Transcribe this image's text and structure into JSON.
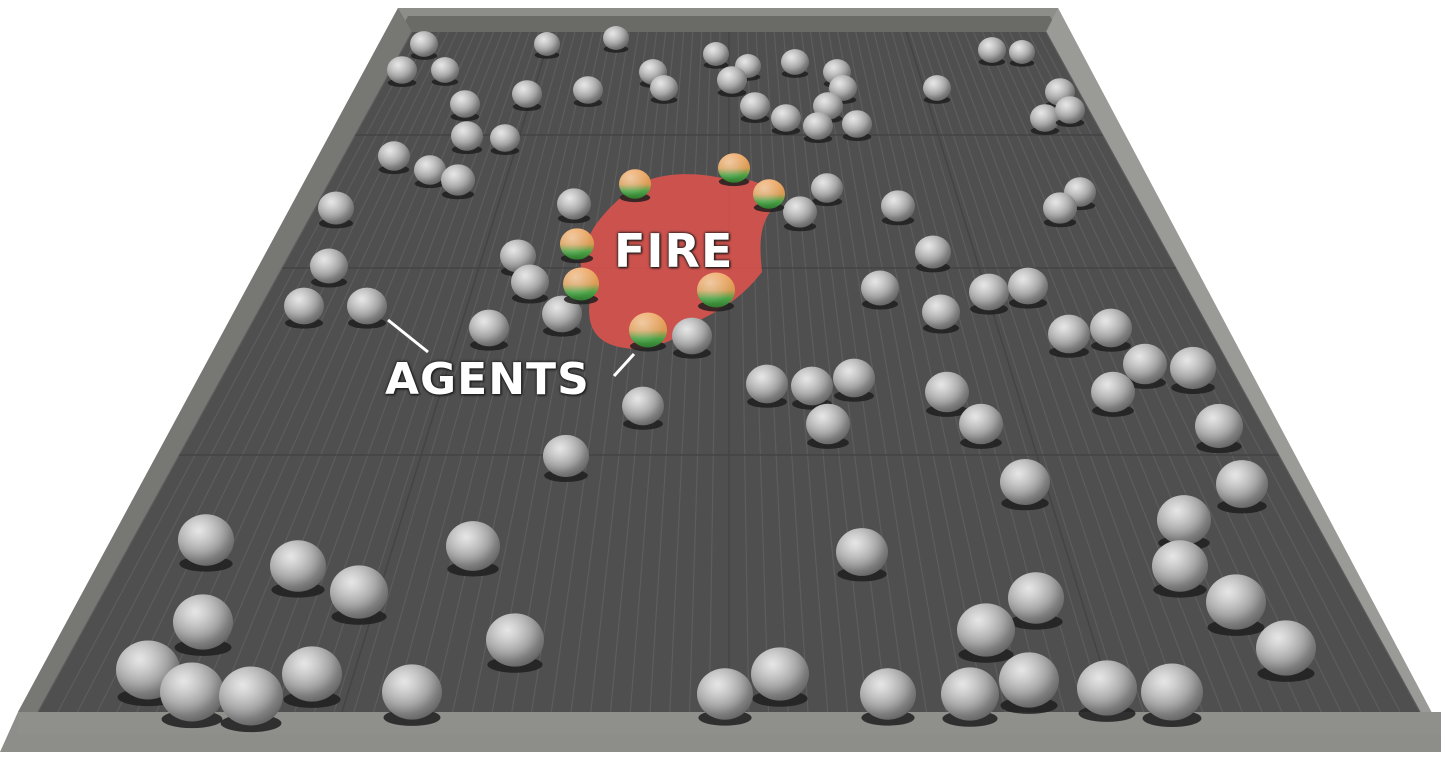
{
  "scene": {
    "fire_label": "FIRE",
    "agents_label": "AGENTS",
    "colors": {
      "floor": "#4f4f4f",
      "wall": "#8a8a86",
      "fire": "#d9524c",
      "agent_idle": "#9b9b9b",
      "agent_active_top": "#e8a05a",
      "agent_active_bottom": "#3f9a3f"
    },
    "agent_count": {
      "idle": 96,
      "active": 8
    }
  }
}
